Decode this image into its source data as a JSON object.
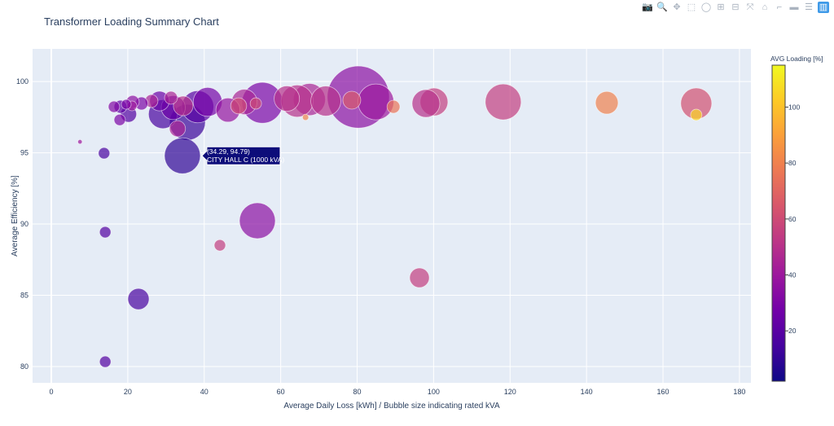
{
  "modebar": [
    {
      "name": "camera-icon",
      "glyph": "📷"
    },
    {
      "name": "zoom-icon",
      "glyph": "🔍"
    },
    {
      "name": "pan-icon",
      "glyph": "✥"
    },
    {
      "name": "box-select-icon",
      "glyph": "⬚"
    },
    {
      "name": "lasso-select-icon",
      "glyph": "◯"
    },
    {
      "name": "zoom-in-icon",
      "glyph": "⊞"
    },
    {
      "name": "zoom-out-icon",
      "glyph": "⊟"
    },
    {
      "name": "autoscale-icon",
      "glyph": "⤧"
    },
    {
      "name": "reset-axes-icon",
      "glyph": "⌂"
    },
    {
      "name": "spike-lines-icon",
      "glyph": "⌐"
    },
    {
      "name": "hover-closest-icon",
      "glyph": "▬"
    },
    {
      "name": "hover-compare-icon",
      "glyph": "☰"
    },
    {
      "name": "plotly-logo-icon",
      "glyph": "▥"
    }
  ],
  "chart_data": {
    "type": "scatter",
    "title": "Transformer Loading Summary Chart",
    "xlabel": "Average Daily Loss [kWh] / Bubble size indicating rated kVA",
    "ylabel": "Average Efficiency [%]",
    "xlim": [
      -4.9,
      183
    ],
    "ylim": [
      78.86,
      102.29
    ],
    "xticks": [
      0,
      20,
      40,
      60,
      80,
      100,
      120,
      140,
      160,
      180
    ],
    "yticks": [
      80,
      85,
      90,
      95,
      100
    ],
    "grid": true,
    "colorbar": {
      "title": "AVG Loading [%]",
      "range": [
        2,
        115
      ],
      "ticks": [
        20,
        40,
        60,
        80,
        100
      ],
      "colorscale": "plasma",
      "colors": [
        "#0d0887",
        "#46039f",
        "#7201a8",
        "#9c179e",
        "#bd3786",
        "#d8576b",
        "#ed7953",
        "#fb9f3a",
        "#fdca26",
        "#f0f921"
      ]
    },
    "hover": {
      "text1": "(34.29, 94.79)",
      "text2": "CITY HALL C (1000 kVA)",
      "x": 34.29,
      "y": 94.79
    },
    "points": [
      {
        "x": 7.5,
        "y": 95.77,
        "kva": 15,
        "load": 40
      },
      {
        "x": 13.8,
        "y": 94.97,
        "kva": 100,
        "load": 15
      },
      {
        "x": 14.1,
        "y": 89.43,
        "kva": 100,
        "load": 18
      },
      {
        "x": 14.1,
        "y": 80.34,
        "kva": 100,
        "load": 18
      },
      {
        "x": 22.8,
        "y": 84.74,
        "kva": 350,
        "load": 15
      },
      {
        "x": 53.9,
        "y": 90.23,
        "kva": 1000,
        "load": 35
      },
      {
        "x": 44.1,
        "y": 88.51,
        "kva": 100,
        "load": 55
      },
      {
        "x": 96.3,
        "y": 86.23,
        "kva": 300,
        "load": 55
      },
      {
        "x": 168.7,
        "y": 98.46,
        "kva": 750,
        "load": 62
      },
      {
        "x": 168.7,
        "y": 97.66,
        "kva": 100,
        "load": 105
      },
      {
        "x": 145.3,
        "y": 98.51,
        "kva": 400,
        "load": 80
      },
      {
        "x": 118.2,
        "y": 98.57,
        "kva": 1000,
        "load": 55
      },
      {
        "x": 100.1,
        "y": 98.57,
        "kva": 600,
        "load": 55
      },
      {
        "x": 98.0,
        "y": 98.46,
        "kva": 600,
        "load": 50
      },
      {
        "x": 89.5,
        "y": 98.23,
        "kva": 130,
        "load": 75
      },
      {
        "x": 80.3,
        "y": 98.91,
        "kva": 3000,
        "load": 35
      },
      {
        "x": 84.9,
        "y": 98.57,
        "kva": 1000,
        "load": 40
      },
      {
        "x": 78.6,
        "y": 98.69,
        "kva": 250,
        "load": 65
      },
      {
        "x": 71.8,
        "y": 98.63,
        "kva": 700,
        "load": 50
      },
      {
        "x": 67.5,
        "y": 98.74,
        "kva": 800,
        "load": 45
      },
      {
        "x": 64.3,
        "y": 98.63,
        "kva": 800,
        "load": 50
      },
      {
        "x": 66.5,
        "y": 97.49,
        "kva": 30,
        "load": 80
      },
      {
        "x": 61.6,
        "y": 98.8,
        "kva": 500,
        "load": 50
      },
      {
        "x": 55.2,
        "y": 98.51,
        "kva": 1300,
        "load": 30
      },
      {
        "x": 53.5,
        "y": 98.46,
        "kva": 100,
        "load": 60
      },
      {
        "x": 50.5,
        "y": 98.57,
        "kva": 500,
        "load": 45
      },
      {
        "x": 46.2,
        "y": 98.0,
        "kva": 450,
        "load": 38
      },
      {
        "x": 49.0,
        "y": 98.29,
        "kva": 200,
        "load": 60
      },
      {
        "x": 40.9,
        "y": 98.57,
        "kva": 650,
        "load": 28
      },
      {
        "x": 38.3,
        "y": 98.23,
        "kva": 800,
        "load": 20
      },
      {
        "x": 34.5,
        "y": 98.29,
        "kva": 300,
        "load": 50
      },
      {
        "x": 31.9,
        "y": 98.17,
        "kva": 450,
        "load": 25
      },
      {
        "x": 33.0,
        "y": 96.69,
        "kva": 200,
        "load": 45
      },
      {
        "x": 29.2,
        "y": 97.71,
        "kva": 650,
        "load": 15
      },
      {
        "x": 28.3,
        "y": 98.63,
        "kva": 300,
        "load": 25
      },
      {
        "x": 26.2,
        "y": 98.63,
        "kva": 130,
        "load": 45
      },
      {
        "x": 31.3,
        "y": 98.86,
        "kva": 130,
        "load": 45
      },
      {
        "x": 23.6,
        "y": 98.46,
        "kva": 130,
        "load": 30
      },
      {
        "x": 21.3,
        "y": 98.57,
        "kva": 130,
        "load": 35
      },
      {
        "x": 21.1,
        "y": 98.29,
        "kva": 75,
        "load": 40
      },
      {
        "x": 20.2,
        "y": 97.71,
        "kva": 200,
        "load": 18
      },
      {
        "x": 18.1,
        "y": 98.23,
        "kva": 130,
        "load": 22
      },
      {
        "x": 16.4,
        "y": 98.23,
        "kva": 100,
        "load": 32
      },
      {
        "x": 17.9,
        "y": 97.31,
        "kva": 100,
        "load": 30
      },
      {
        "x": 19.6,
        "y": 98.4,
        "kva": 75,
        "load": 30
      },
      {
        "x": 35.6,
        "y": 97.14,
        "kva": 1000,
        "load": 12
      },
      {
        "x": 34.29,
        "y": 94.79,
        "kva": 1000,
        "load": 10
      }
    ]
  }
}
